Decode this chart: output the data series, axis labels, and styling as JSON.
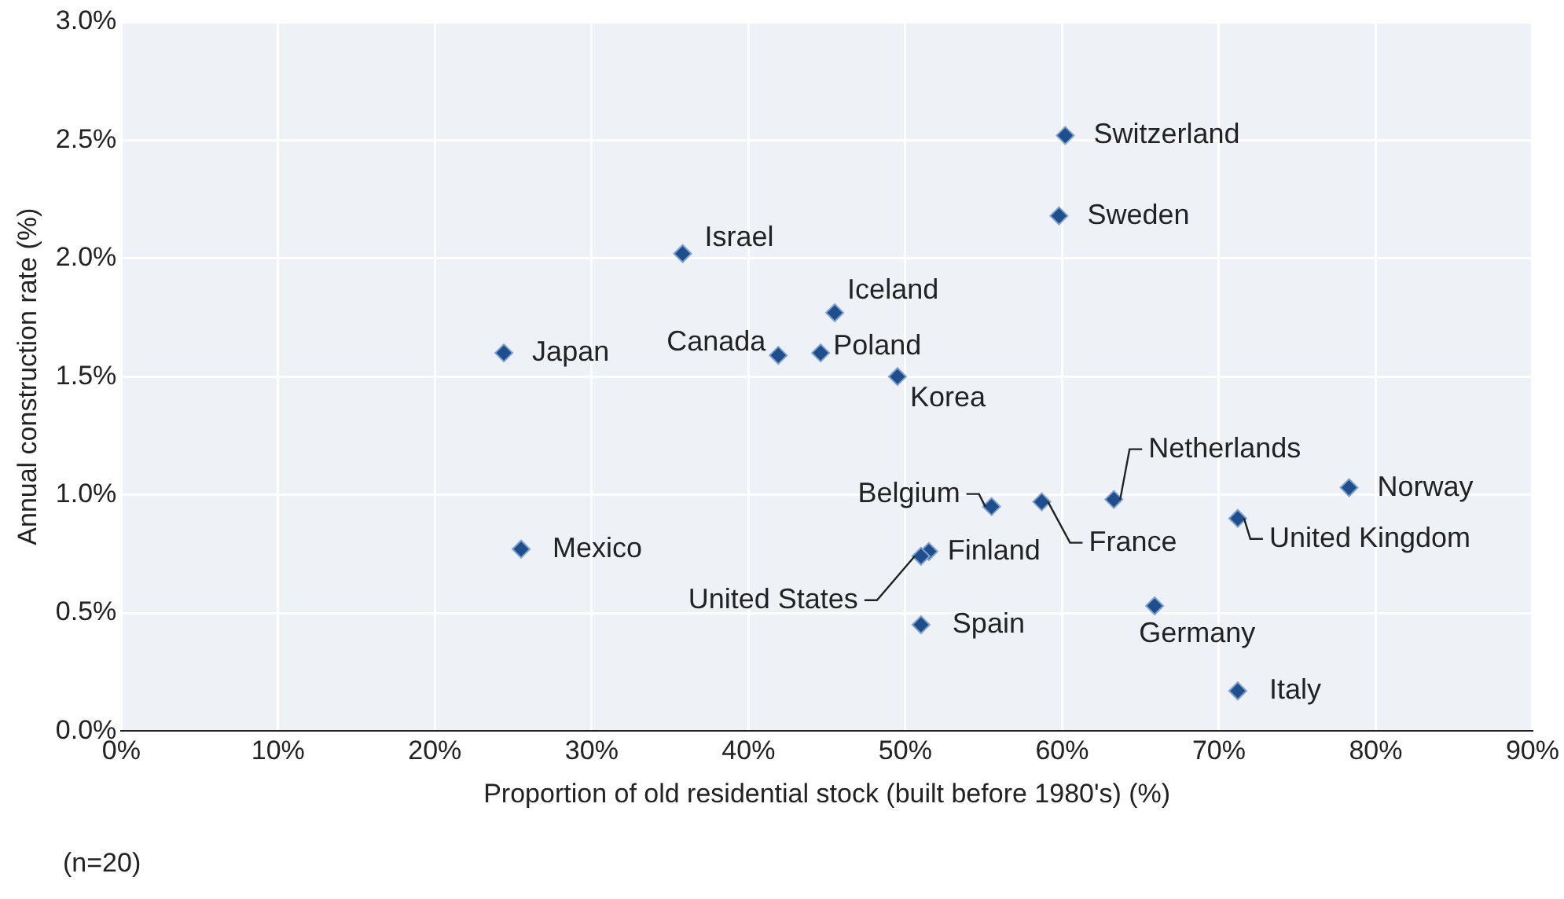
{
  "chart_data": {
    "type": "scatter",
    "xlabel": "Proportion of old residential stock (built before 1980's) (%)",
    "ylabel": "Annual construction rate (%)",
    "x": [
      60.2,
      59.8,
      35.8,
      45.5,
      24.4,
      41.9,
      44.6,
      49.5,
      63.3,
      78.3,
      55.5,
      58.7,
      71.2,
      25.5,
      51.5,
      51.0,
      65.9,
      51.0,
      71.2
    ],
    "series": [
      {
        "color": "#1f4e8c",
        "values": [
          2.52,
          2.18,
          2.02,
          1.77,
          1.6,
          1.59,
          1.6,
          1.5,
          0.98,
          1.03,
          0.95,
          0.97,
          0.9,
          0.77,
          0.76,
          0.74,
          0.53,
          0.45,
          0.17
        ]
      }
    ],
    "annotations": [
      {
        "text": "Switzerland",
        "x": 60.2,
        "y": 2.52
      },
      {
        "text": "Sweden",
        "x": 59.8,
        "y": 2.18
      },
      {
        "text": "Israel",
        "x": 35.8,
        "y": 2.02
      },
      {
        "text": "Iceland",
        "x": 45.5,
        "y": 1.77
      },
      {
        "text": "Japan",
        "x": 24.4,
        "y": 1.6
      },
      {
        "text": "Canada",
        "x": 41.9,
        "y": 1.59
      },
      {
        "text": "Poland",
        "x": 44.6,
        "y": 1.6
      },
      {
        "text": "Korea",
        "x": 49.5,
        "y": 1.5
      },
      {
        "text": "Netherlands",
        "x": 63.3,
        "y": 0.98
      },
      {
        "text": "Norway",
        "x": 78.3,
        "y": 1.03
      },
      {
        "text": "Belgium",
        "x": 55.5,
        "y": 0.95
      },
      {
        "text": "France",
        "x": 58.7,
        "y": 0.97
      },
      {
        "text": "United Kingdom",
        "x": 71.2,
        "y": 0.9
      },
      {
        "text": "Mexico",
        "x": 25.5,
        "y": 0.77
      },
      {
        "text": "Finland",
        "x": 51.5,
        "y": 0.76
      },
      {
        "text": "United States",
        "x": 51.0,
        "y": 0.74
      },
      {
        "text": "Germany",
        "x": 65.9,
        "y": 0.53
      },
      {
        "text": "Spain",
        "x": 51.0,
        "y": 0.45
      },
      {
        "text": "Italy",
        "x": 71.2,
        "y": 0.17
      },
      "(n=20)"
    ],
    "xlim": [
      0,
      90
    ],
    "xticks": [
      {
        "value": 0,
        "label": "0%"
      },
      {
        "value": 10,
        "label": "10%"
      },
      {
        "value": 20,
        "label": "20%"
      },
      {
        "value": 30,
        "label": "30%"
      },
      {
        "value": 40,
        "label": "40%"
      },
      {
        "value": 50,
        "label": "50%"
      },
      {
        "value": 60,
        "label": "60%"
      },
      {
        "value": 70,
        "label": "70%"
      },
      {
        "value": 80,
        "label": "80%"
      },
      {
        "value": 90,
        "label": "90%"
      }
    ],
    "ylim": [
      0,
      3
    ],
    "yticks": [
      {
        "value": 0,
        "label": "0.0%"
      },
      {
        "value": 0.5,
        "label": "0.5%"
      },
      {
        "value": 1,
        "label": "1.0%"
      },
      {
        "value": 1.5,
        "label": "1.5%"
      },
      {
        "value": 2,
        "label": "2.0%"
      },
      {
        "value": 2.5,
        "label": "2.5%"
      },
      {
        "value": 3,
        "label": "3.0%"
      }
    ],
    "grid": true,
    "marker": "diamond",
    "legend": false
  }
}
